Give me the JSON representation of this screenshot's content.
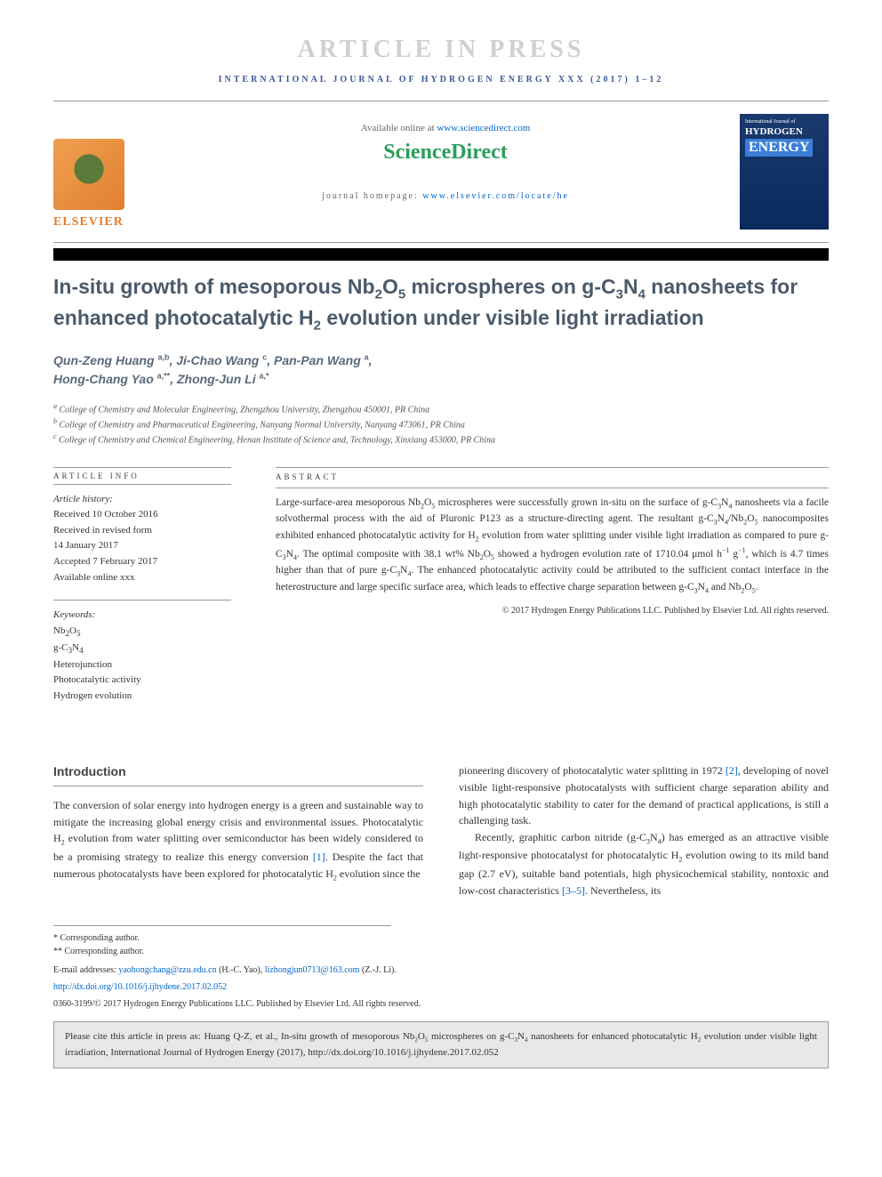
{
  "banner": "ARTICLE IN PRESS",
  "journal_header": "INTERNATIONAL JOURNAL OF HYDROGEN ENERGY XXX (2017) 1–12",
  "header": {
    "available_prefix": "Available online at ",
    "available_link": "www.sciencedirect.com",
    "brand": "ScienceDirect",
    "homepage_prefix": "journal homepage: ",
    "homepage_link": "www.elsevier.com/locate/he",
    "elsevier_text": "ELSEVIER",
    "cover_journal": "International Journal of",
    "cover_hydrogen": "HYDROGEN",
    "cover_energy": "ENERGY"
  },
  "title_html": "In-situ growth of mesoporous Nb<sub>2</sub>O<sub>5</sub> microspheres on g-C<sub>3</sub>N<sub>4</sub> nanosheets for enhanced photocatalytic H<sub>2</sub> evolution under visible light irradiation",
  "authors_html": "Qun-Zeng Huang <sup>a,b</sup>, Ji-Chao Wang <sup>c</sup>, Pan-Pan Wang <sup>a</sup>,<br>Hong-Chang Yao <sup>a,**</sup>, Zhong-Jun Li <sup>a,*</sup>",
  "affiliations": [
    "<sup>a</sup> College of Chemistry and Molecular Engineering, Zhengzhou University, Zhengzhou 450001, PR China",
    "<sup>b</sup> College of Chemistry and Pharmaceutical Engineering, Nanyang Normal University, Nanyang 473061, PR China",
    "<sup>c</sup> College of Chemistry and Chemical Engineering, Henan Institute of Science and, Technology, Xinxiang 453000, PR China"
  ],
  "info": {
    "heading": "ARTICLE INFO",
    "history_label": "Article history:",
    "history": [
      "Received 10 October 2016",
      "Received in revised form",
      "14 January 2017",
      "Accepted 7 February 2017",
      "Available online xxx"
    ],
    "keywords_label": "Keywords:",
    "keywords": [
      "Nb<sub>2</sub>O<sub>5</sub>",
      "g-C<sub>3</sub>N<sub>4</sub>",
      "Heterojunction",
      "Photocatalytic activity",
      "Hydrogen evolution"
    ]
  },
  "abstract": {
    "heading": "ABSTRACT",
    "text_html": "Large-surface-area mesoporous Nb<sub>2</sub>O<sub>5</sub> microspheres were successfully grown in-situ on the surface of g-C<sub>3</sub>N<sub>4</sub> nanosheets via a facile solvothermal process with the aid of Pluronic P123 as a structure-directing agent. The resultant g-C<sub>3</sub>N<sub>4</sub>/Nb<sub>2</sub>O<sub>5</sub> nanocomposites exhibited enhanced photocatalytic activity for H<sub>2</sub> evolution from water splitting under visible light irradiation as compared to pure g-C<sub>3</sub>N<sub>4</sub>. The optimal composite with 38.1 wt% Nb<sub>2</sub>O<sub>5</sub> showed a hydrogen evolution rate of 1710.04 μmol h<sup>−1</sup> g<sup>−1</sup>, which is 4.7 times higher than that of pure g-C<sub>3</sub>N<sub>4</sub>. The enhanced photocatalytic activity could be attributed to the sufficient contact interface in the heterostructure and large specific surface area, which leads to effective charge separation between g-C<sub>3</sub>N<sub>4</sub> and Nb<sub>2</sub>O<sub>5</sub>.",
    "copyright": "© 2017 Hydrogen Energy Publications LLC. Published by Elsevier Ltd. All rights reserved."
  },
  "intro": {
    "heading": "Introduction",
    "col1_html": "The conversion of solar energy into hydrogen energy is a green and sustainable way to mitigate the increasing global energy crisis and environmental issues. Photocatalytic H<sub>2</sub> evolution from water splitting over semiconductor has been widely considered to be a promising strategy to realize this energy conversion <span class=\"cite-link\">[1]</span>. Despite the fact that numerous photocatalysts have been explored for photocatalytic H<sub>2</sub> evolution since the",
    "col2_p1_html": "pioneering discovery of photocatalytic water splitting in 1972 <span class=\"cite-link\">[2]</span>, developing of novel visible light-responsive photocatalysts with sufficient charge separation ability and high photocatalytic stability to cater for the demand of practical applications, is still a challenging task.",
    "col2_p2_html": "Recently, graphitic carbon nitride (g-C<sub>3</sub>N<sub>4</sub>) has emerged as an attractive visible light-responsive photocatalyst for photocatalytic H<sub>2</sub> evolution owing to its mild band gap (2.7 eV), suitable band potentials, high physicochemical stability, nontoxic and low-cost characteristics <span class=\"cite-link\">[3–5]</span>. Nevertheless, its"
  },
  "footnotes": {
    "star1": "* Corresponding author.",
    "star2": "** Corresponding author.",
    "emails_prefix": "E-mail addresses: ",
    "email1": "yaohongchang@zzu.edu.cn",
    "email1_who": " (H.-C. Yao), ",
    "email2": "lizhongjun0713@163.com",
    "email2_who": " (Z.-J. Li).",
    "doi": "http://dx.doi.org/10.1016/j.ijhydene.2017.02.052",
    "issn_line": "0360-3199/© 2017 Hydrogen Energy Publications LLC. Published by Elsevier Ltd. All rights reserved."
  },
  "cite_box_html": "Please cite this article in press as: Huang Q-Z, et al., In-situ growth of mesoporous Nb<sub>2</sub>O<sub>5</sub> microspheres on g-C<sub>3</sub>N<sub>4</sub> nanosheets for enhanced photocatalytic H<sub>2</sub> evolution under visible light irradiation, International Journal of Hydrogen Energy (2017), http://dx.doi.org/10.1016/j.ijhydene.2017.02.052",
  "colors": {
    "link": "#0066cc",
    "brand_green": "#2a9d5a",
    "elsevier_orange": "#e08030",
    "title_gray": "#4a5a6a"
  }
}
